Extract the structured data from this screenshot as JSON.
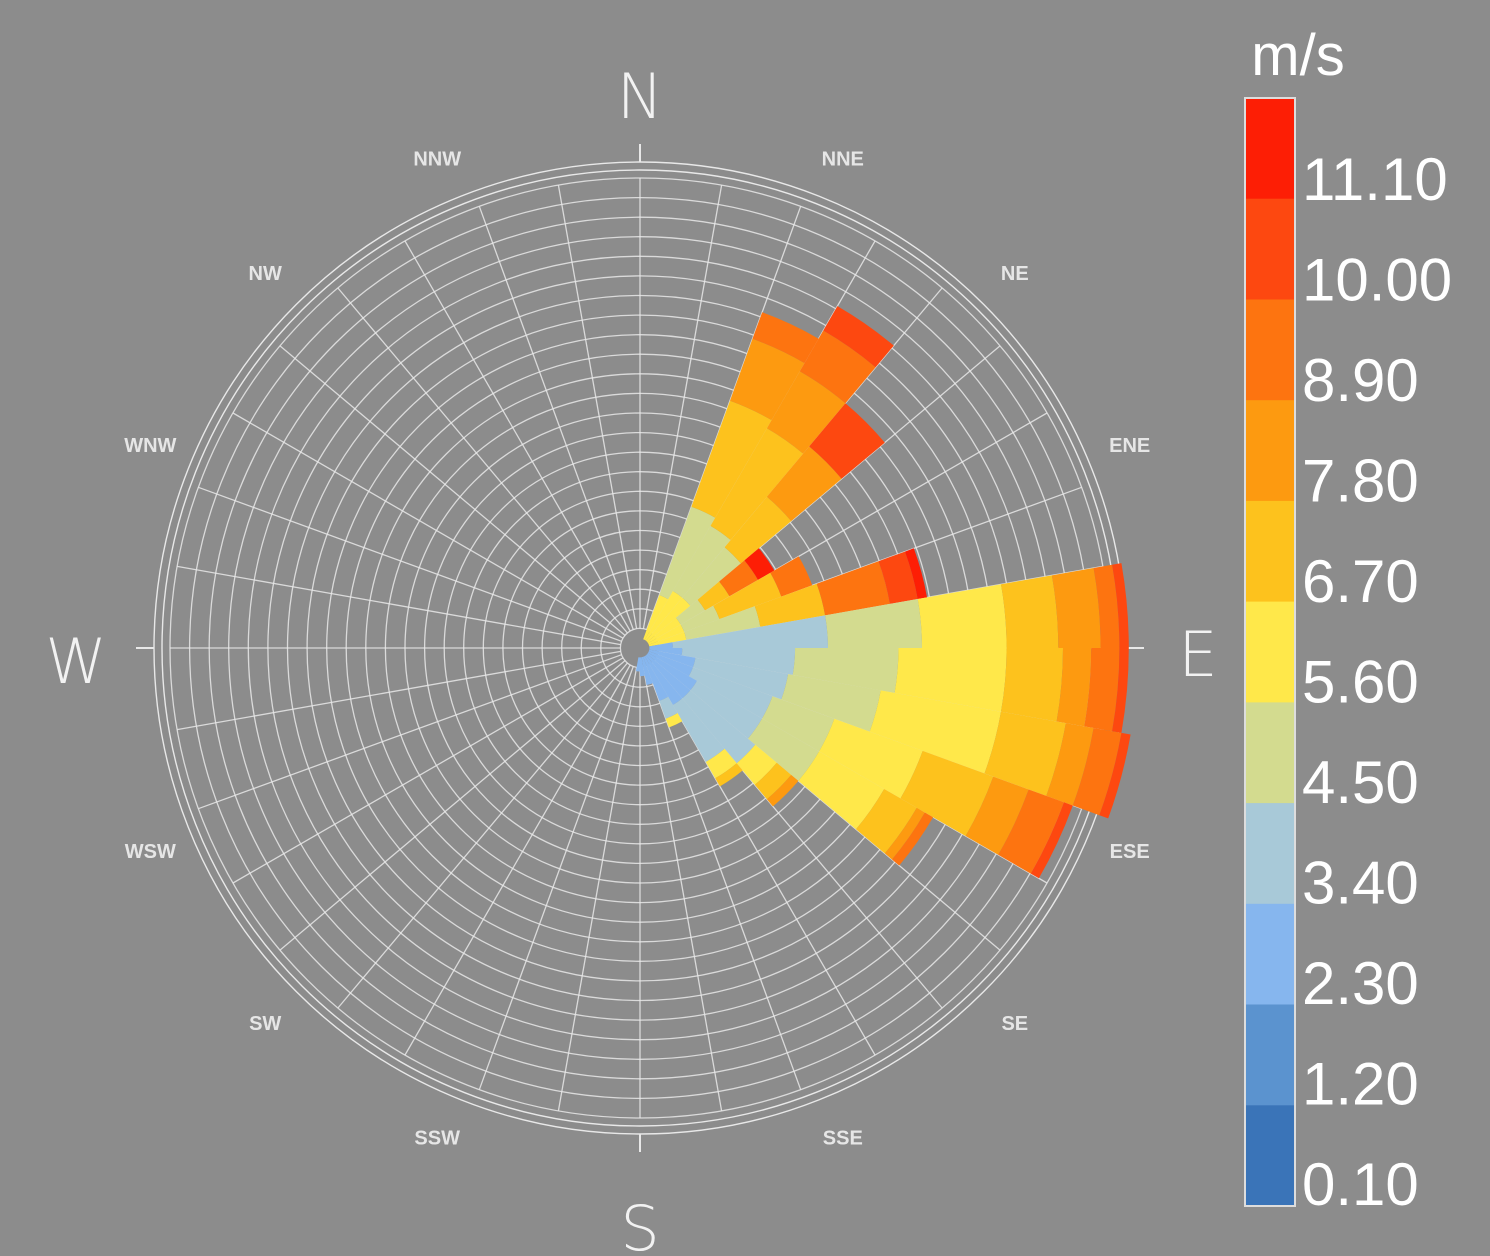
{
  "chart_data": {
    "type": "wind-rose",
    "directions": {
      "major": [
        "N",
        "E",
        "S",
        "W"
      ],
      "minor": [
        "NNE",
        "NE",
        "ENE",
        "ESE",
        "SE",
        "SSE",
        "SSW",
        "SW",
        "WSW",
        "WNW",
        "NW",
        "NNW"
      ]
    },
    "legend": {
      "unit": "m/s",
      "ticks": [
        "11.10",
        "10.00",
        "8.90",
        "7.80",
        "6.70",
        "5.60",
        "4.50",
        "3.40",
        "2.30",
        "1.20",
        "0.10"
      ],
      "bins": [
        {
          "min": 0.1,
          "max": 1.2,
          "color": "#3a74b8"
        },
        {
          "min": 1.2,
          "max": 2.3,
          "color": "#5b93cf"
        },
        {
          "min": 2.3,
          "max": 3.4,
          "color": "#86b6ee"
        },
        {
          "min": 3.4,
          "max": 4.5,
          "color": "#a8c9d8"
        },
        {
          "min": 4.5,
          "max": 5.6,
          "color": "#d3db8f"
        },
        {
          "min": 5.6,
          "max": 6.7,
          "color": "#ffe84a"
        },
        {
          "min": 6.7,
          "max": 7.8,
          "color": "#fdc21d"
        },
        {
          "min": 7.8,
          "max": 8.9,
          "color": "#fd9a10"
        },
        {
          "min": 8.9,
          "max": 10.0,
          "color": "#fd7410"
        },
        {
          "min": 10.0,
          "max": 11.1,
          "color": "#fd4810"
        },
        {
          "min": 11.1,
          "max": 12.2,
          "color": "#fd1e05"
        }
      ]
    },
    "sector_count": 36,
    "radial_ring_count": 24,
    "sectors": [
      {
        "bearing": 25,
        "stack": [
          [
            5,
            0.1
          ],
          [
            4,
            0.2
          ],
          [
            6,
            0.24
          ],
          [
            7,
            0.14
          ],
          [
            8,
            0.06
          ]
        ]
      },
      {
        "bearing": 35,
        "stack": [
          [
            5,
            0.12
          ],
          [
            4,
            0.16
          ],
          [
            6,
            0.24
          ],
          [
            7,
            0.14
          ],
          [
            8,
            0.1
          ],
          [
            9,
            0.06
          ]
        ]
      },
      {
        "bearing": 45,
        "stack": [
          [
            5,
            0.12
          ],
          [
            4,
            0.14
          ],
          [
            6,
            0.14
          ],
          [
            7,
            0.14
          ],
          [
            9,
            0.12
          ]
        ]
      },
      {
        "bearing": 55,
        "stack": [
          [
            5,
            0.08
          ],
          [
            4,
            0.06
          ],
          [
            6,
            0.06
          ],
          [
            8,
            0.07
          ],
          [
            10,
            0.04
          ]
        ]
      },
      {
        "bearing": 65,
        "stack": [
          [
            5,
            0.08
          ],
          [
            4,
            0.08
          ],
          [
            6,
            0.14
          ],
          [
            8,
            0.07
          ]
        ]
      },
      {
        "bearing": 75,
        "stack": [
          [
            5,
            0.08
          ],
          [
            4,
            0.16
          ],
          [
            6,
            0.14
          ],
          [
            8,
            0.14
          ],
          [
            9,
            0.06
          ],
          [
            10,
            0.02
          ]
        ]
      },
      {
        "bearing": 85,
        "stack": [
          [
            2,
            0.05
          ],
          [
            3,
            0.33
          ],
          [
            4,
            0.2
          ],
          [
            5,
            0.18
          ],
          [
            6,
            0.11
          ],
          [
            7,
            0.09
          ],
          [
            8,
            0.04
          ],
          [
            9,
            0.02
          ]
        ]
      },
      {
        "bearing": 95,
        "stack": [
          [
            2,
            0.07
          ],
          [
            3,
            0.24
          ],
          [
            4,
            0.22
          ],
          [
            5,
            0.23
          ],
          [
            6,
            0.12
          ],
          [
            7,
            0.06
          ],
          [
            8,
            0.06
          ],
          [
            9,
            0.02
          ]
        ]
      },
      {
        "bearing": 105,
        "stack": [
          [
            2,
            0.1
          ],
          [
            3,
            0.2
          ],
          [
            4,
            0.2
          ],
          [
            5,
            0.26
          ],
          [
            6,
            0.14
          ],
          [
            7,
            0.06
          ],
          [
            8,
            0.06
          ],
          [
            9,
            0.02
          ]
        ]
      },
      {
        "bearing": 115,
        "stack": [
          [
            2,
            0.1
          ],
          [
            3,
            0.18
          ],
          [
            4,
            0.14
          ],
          [
            5,
            0.2
          ],
          [
            6,
            0.16
          ],
          [
            7,
            0.08
          ],
          [
            8,
            0.08
          ],
          [
            9,
            0.02
          ]
        ]
      },
      {
        "bearing": 125,
        "stack": [
          [
            2,
            0.12
          ],
          [
            3,
            0.16
          ],
          [
            4,
            0.14
          ],
          [
            5,
            0.16
          ],
          [
            6,
            0.08
          ],
          [
            7,
            0.02
          ],
          [
            8,
            0.02
          ]
        ]
      },
      {
        "bearing": 135,
        "stack": [
          [
            2,
            0.12
          ],
          [
            3,
            0.18
          ],
          [
            5,
            0.06
          ],
          [
            6,
            0.04
          ],
          [
            7,
            0.02
          ]
        ]
      },
      {
        "bearing": 145,
        "stack": [
          [
            2,
            0.12
          ],
          [
            3,
            0.14
          ],
          [
            5,
            0.04
          ],
          [
            6,
            0.02
          ]
        ]
      },
      {
        "bearing": 155,
        "stack": [
          [
            2,
            0.1
          ],
          [
            3,
            0.04
          ],
          [
            5,
            0.02
          ]
        ]
      },
      {
        "bearing": 165,
        "stack": [
          [
            2,
            0.06
          ]
        ]
      },
      {
        "bearing": 175,
        "stack": [
          [
            2,
            0.04
          ]
        ]
      },
      {
        "bearing": 185,
        "stack": [
          [
            2,
            0.03
          ]
        ]
      }
    ]
  },
  "colors": {
    "background": "#8c8c8c",
    "grid": "#e8e8e8",
    "legend_border": "#dddddd"
  }
}
